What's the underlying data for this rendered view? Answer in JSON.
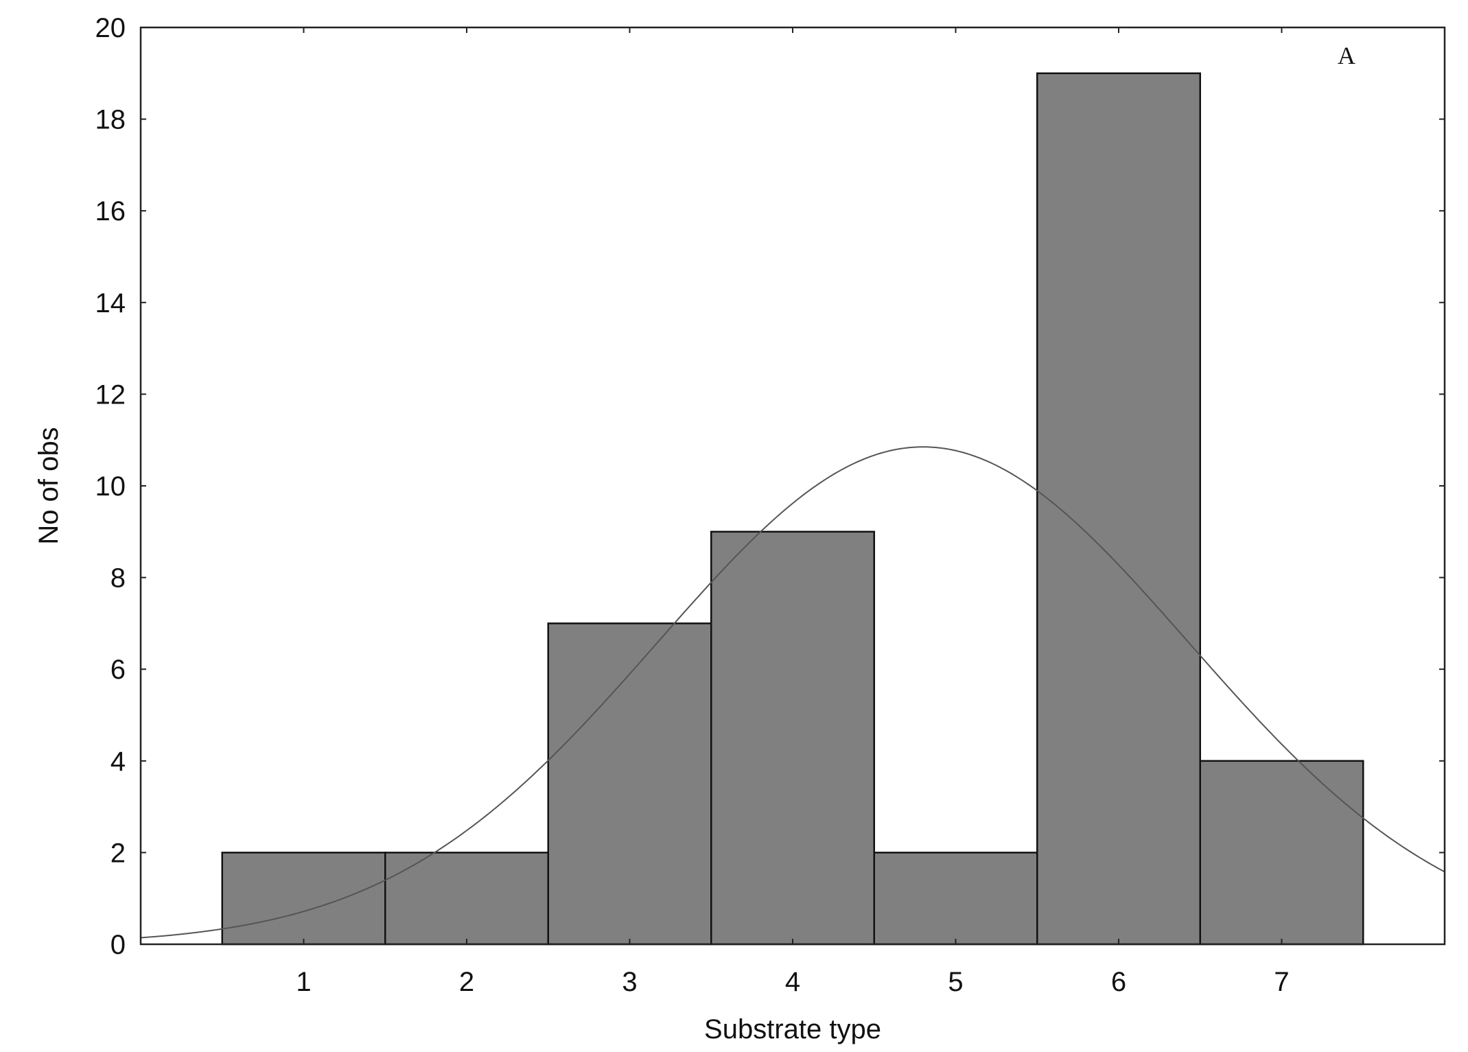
{
  "chart_data": {
    "type": "bar",
    "categories": [
      "1",
      "2",
      "3",
      "4",
      "5",
      "6",
      "7"
    ],
    "values": [
      2,
      2,
      7,
      9,
      2,
      19,
      4
    ],
    "xlabel": "Substrate type",
    "ylabel": "No of obs",
    "panel_label": "A",
    "xlim": [
      0,
      8
    ],
    "ylim": [
      0,
      20
    ],
    "x_ticks": [
      1,
      2,
      3,
      4,
      5,
      6,
      7
    ],
    "y_ticks": [
      0,
      2,
      4,
      6,
      8,
      10,
      12,
      14,
      16,
      18,
      20
    ],
    "bar_color": "#808080",
    "bar_edge_color": "#111111",
    "curve_color": "#555555",
    "grid": false,
    "legend": "none",
    "fitted_curve": {
      "type": "normal",
      "mean": 4.8,
      "sd": 1.63,
      "peak": 10.85
    }
  }
}
